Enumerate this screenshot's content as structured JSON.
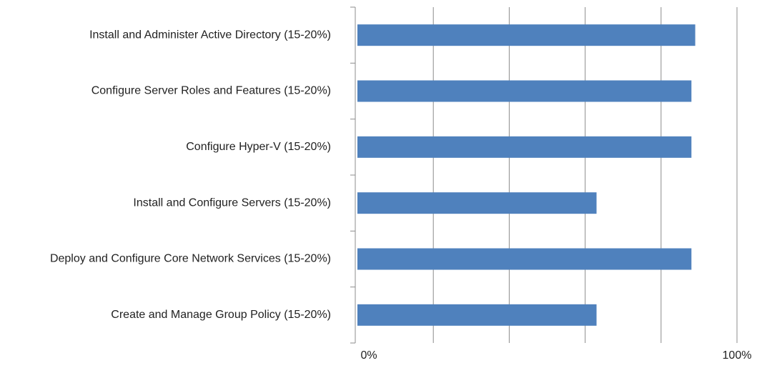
{
  "chart_data": {
    "type": "barh",
    "categories": [
      "Install and Administer Active Directory (15-20%)",
      "Configure Server Roles and Features (15-20%)",
      "Configure Hyper-V (15-20%)",
      "Install and Configure Servers (15-20%)",
      "Deploy and Configure Core Network Services (15-20%)",
      "Create and Manage Group Policy (15-20%)"
    ],
    "values": [
      89,
      88,
      88,
      63,
      88,
      63
    ],
    "color": "#4f81bd",
    "xlim": [
      0,
      100
    ],
    "xticks": [
      {
        "value": 0,
        "label": "0%"
      },
      {
        "value": 20,
        "label": null
      },
      {
        "value": 40,
        "label": null
      },
      {
        "value": 60,
        "label": null
      },
      {
        "value": 80,
        "label": null
      },
      {
        "value": 100,
        "label": "100%"
      }
    ],
    "grid": true
  }
}
